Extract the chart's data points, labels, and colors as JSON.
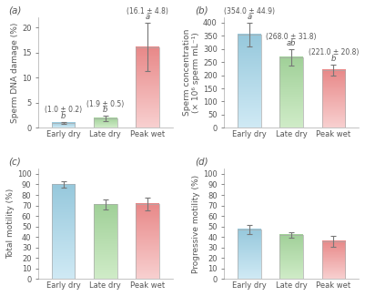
{
  "panels": [
    {
      "label": "(a)",
      "ylabel": "Sperm DNA damage (%)",
      "categories": [
        "Early dry",
        "Late dry",
        "Peak wet"
      ],
      "values": [
        1.0,
        1.9,
        16.1
      ],
      "errors": [
        0.2,
        0.5,
        4.8
      ],
      "sig_letters": [
        "b",
        "b",
        "a"
      ],
      "sig_vals": [
        "(1.0 ± 0.2)",
        "(1.9 ± 0.5)",
        "(16.1 ± 4.8)"
      ],
      "ylim": [
        0,
        22
      ],
      "yticks": [
        0,
        5,
        10,
        15,
        20
      ],
      "bar_colors_top": [
        "#96c8dc",
        "#a0d098",
        "#e88888"
      ],
      "bar_colors_bot": [
        "#d0eaf5",
        "#d0ecc8",
        "#f8d0d0"
      ]
    },
    {
      "label": "(b)",
      "ylabel": "Sperm concentration\n(× 10⁶ sperm mL⁻¹)",
      "categories": [
        "Early dry",
        "Late dry",
        "Peak wet"
      ],
      "values": [
        354.0,
        268.0,
        221.0
      ],
      "errors": [
        44.9,
        31.8,
        20.8
      ],
      "sig_letters": [
        "a",
        "ab",
        "b"
      ],
      "sig_vals": [
        "(354.0 ± 44.9)",
        "(268.0 ± 31.8)",
        "(221.0 ± 20.8)"
      ],
      "ylim": [
        0,
        420
      ],
      "yticks": [
        0,
        50,
        100,
        150,
        200,
        250,
        300,
        350,
        400
      ],
      "bar_colors_top": [
        "#96c8dc",
        "#a0d098",
        "#e88888"
      ],
      "bar_colors_bot": [
        "#d0eaf5",
        "#d0ecc8",
        "#f8d0d0"
      ]
    },
    {
      "label": "(c)",
      "ylabel": "Total motility (%)",
      "categories": [
        "Early dry",
        "Late dry",
        "Peak wet"
      ],
      "values": [
        90.0,
        71.0,
        71.5
      ],
      "errors": [
        3.0,
        5.0,
        6.0
      ],
      "sig_letters": [
        null,
        null,
        null
      ],
      "sig_vals": [
        null,
        null,
        null
      ],
      "ylim": [
        0,
        105
      ],
      "yticks": [
        0,
        10,
        20,
        30,
        40,
        50,
        60,
        70,
        80,
        90,
        100
      ],
      "bar_colors_top": [
        "#96c8dc",
        "#a0d098",
        "#e88888"
      ],
      "bar_colors_bot": [
        "#d0eaf5",
        "#d0ecc8",
        "#f8d0d0"
      ]
    },
    {
      "label": "(d)",
      "ylabel": "Progressive motility (%)",
      "categories": [
        "Early dry",
        "Late dry",
        "Peak wet"
      ],
      "values": [
        47.0,
        42.0,
        36.0
      ],
      "errors": [
        4.0,
        2.5,
        5.0
      ],
      "sig_letters": [
        null,
        null,
        null
      ],
      "sig_vals": [
        null,
        null,
        null
      ],
      "ylim": [
        0,
        105
      ],
      "yticks": [
        0,
        10,
        20,
        30,
        40,
        50,
        60,
        70,
        80,
        90,
        100
      ],
      "bar_colors_top": [
        "#96c8dc",
        "#a0d098",
        "#e88888"
      ],
      "bar_colors_bot": [
        "#d0eaf5",
        "#d0ecc8",
        "#f8d0d0"
      ]
    }
  ],
  "figure_bg": "#ffffff",
  "text_color": "#555555",
  "error_color": "#777777",
  "fontsize_label": 6.5,
  "fontsize_tick": 6.0,
  "fontsize_panel": 7.5,
  "fontsize_sig": 6.0
}
